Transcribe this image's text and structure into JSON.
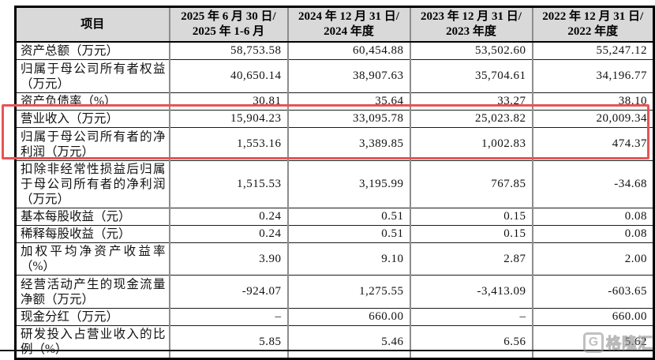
{
  "colors": {
    "header_bg": "#d9d9d9",
    "outer_border": "#000000",
    "inner_vertical_border": "#8d8d8d",
    "highlight_red": "#e85353",
    "watermark_gray": "#9a9a9a"
  },
  "table": {
    "header": {
      "item_label": "项目",
      "periods": [
        {
          "line1": "2025 年 6 月 30 日/",
          "line2": "2025 年 1-6 月"
        },
        {
          "line1": "2024 年 12 月 31 日/",
          "line2": "2024 年度"
        },
        {
          "line1": "2023 年 12 月 31 日/",
          "line2": "2023 年度"
        },
        {
          "line1": "2022 年 12 月 31 日/",
          "line2": "2022 年度"
        }
      ]
    },
    "rows": [
      {
        "label": "资产总额（万元）",
        "lines": 1,
        "highlighted": false,
        "values": [
          "58,753.58",
          "60,454.88",
          "53,502.60",
          "55,247.12"
        ]
      },
      {
        "label": "归属于母公司所有者权益（万元）",
        "lines": 2,
        "highlighted": false,
        "values": [
          "40,650.14",
          "38,907.63",
          "35,704.61",
          "34,196.77"
        ]
      },
      {
        "label": "资产负债率（%）",
        "lines": 1,
        "highlighted": false,
        "values": [
          "30.81",
          "35.64",
          "33.27",
          "38.10"
        ]
      },
      {
        "label": "营业收入（万元）",
        "lines": 1,
        "highlighted": true,
        "values": [
          "15,904.23",
          "33,095.78",
          "25,023.82",
          "20,009.34"
        ]
      },
      {
        "label": "归属于母公司所有者的净利润（万元）",
        "lines": 2,
        "highlighted": true,
        "values": [
          "1,553.16",
          "3,389.85",
          "1,002.83",
          "474.37"
        ]
      },
      {
        "label": "扣除非经常性损益后归属于母公司所有者的净利润（万元）",
        "lines": 3,
        "highlighted": false,
        "values": [
          "1,515.53",
          "3,195.99",
          "767.85",
          "-34.68"
        ]
      },
      {
        "label": "基本每股收益（元）",
        "lines": 1,
        "highlighted": false,
        "values": [
          "0.24",
          "0.51",
          "0.15",
          "0.08"
        ]
      },
      {
        "label": "稀释每股收益（元）",
        "lines": 1,
        "highlighted": false,
        "values": [
          "0.24",
          "0.51",
          "0.15",
          "0.08"
        ]
      },
      {
        "label": "加权平均净资产收益率（%）",
        "lines": 1,
        "highlighted": false,
        "values": [
          "3.90",
          "9.10",
          "2.87",
          "2.00"
        ]
      },
      {
        "label": "经营活动产生的现金流量净额（万元）",
        "lines": 2,
        "highlighted": false,
        "values": [
          "-924.07",
          "1,275.55",
          "-3,413.09",
          "-603.65"
        ]
      },
      {
        "label": "现金分红（万元）",
        "lines": 1,
        "highlighted": false,
        "values": [
          "–",
          "660.00",
          "–",
          "660.00"
        ]
      },
      {
        "label": "研发投入占营业收入的比例（%）",
        "lines": 2,
        "highlighted": false,
        "values": [
          "5.85",
          "5.46",
          "6.56",
          "5.62"
        ]
      }
    ]
  },
  "watermark": {
    "icon_letter": "G",
    "text": "格隆汇"
  }
}
